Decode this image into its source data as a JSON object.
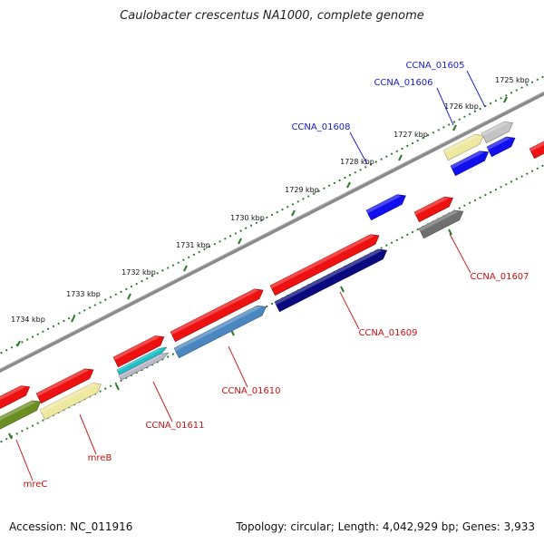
{
  "title": "Caulobacter crescentus NA1000, complete genome",
  "accession": "Accession: NC_011916",
  "summary": "Topology: circular; Length: 4,042,929 bp; Genes: 3,933",
  "colors": {
    "backbone": "#8a8a8a",
    "tick": "#2a7a2a",
    "label_forward": "#1a1acc",
    "label_reverse": "#cc1111",
    "leader_forward": "#2222cc",
    "leader_reverse": "#cc2222"
  },
  "ticks": [
    {
      "label": "1725 kbp"
    },
    {
      "label": "1726 kbp"
    },
    {
      "label": "1727 kbp"
    },
    {
      "label": "1728 kbp"
    },
    {
      "label": "1729 kbp"
    },
    {
      "label": "1730 kbp"
    },
    {
      "label": "1731 kbp"
    },
    {
      "label": "1732 kbp"
    },
    {
      "label": "1733 kbp"
    },
    {
      "label": "1734 kbp"
    }
  ],
  "features": [
    {
      "name": "mreC-top",
      "color": "#ee1111"
    },
    {
      "name": "mreC",
      "color": "#6b8e23"
    },
    {
      "name": "mreB-top",
      "color": "#ee1111"
    },
    {
      "name": "mreB",
      "color": "#eee8a0"
    },
    {
      "name": "ccna01611-top",
      "color": "#ee1111"
    },
    {
      "name": "ccna01611-cyan",
      "color": "#20c0c8"
    },
    {
      "name": "ccna01611-grey",
      "color": "#b8b8c8"
    },
    {
      "name": "ccna01610-top",
      "color": "#ee1111"
    },
    {
      "name": "ccna01610",
      "color": "#4a86c0"
    },
    {
      "name": "ccna01609-top",
      "color": "#ee1111"
    },
    {
      "name": "ccna01609",
      "color": "#0a0a80"
    },
    {
      "name": "ccna01608",
      "color": "#1010ee"
    },
    {
      "name": "ccna01607-top",
      "color": "#ee1111"
    },
    {
      "name": "ccna01607",
      "color": "#707070"
    },
    {
      "name": "ccna01606-top",
      "color": "#eee8a0"
    },
    {
      "name": "ccna01606",
      "color": "#1010ee"
    },
    {
      "name": "ccna01605-top",
      "color": "#c4c4c4"
    },
    {
      "name": "ccna01605",
      "color": "#1010ee"
    },
    {
      "name": "edge-red",
      "color": "#ee1111"
    }
  ],
  "gene_labels": [
    {
      "text": "CCNA_01605",
      "strand": "forward"
    },
    {
      "text": "CCNA_01606",
      "strand": "forward"
    },
    {
      "text": "CCNA_01608",
      "strand": "forward"
    },
    {
      "text": "CCNA_01607",
      "strand": "reverse"
    },
    {
      "text": "CCNA_01609",
      "strand": "reverse"
    },
    {
      "text": "CCNA_01610",
      "strand": "reverse"
    },
    {
      "text": "CCNA_01611",
      "strand": "reverse"
    },
    {
      "text": "mreB",
      "strand": "reverse"
    },
    {
      "text": "mreC",
      "strand": "reverse"
    }
  ]
}
